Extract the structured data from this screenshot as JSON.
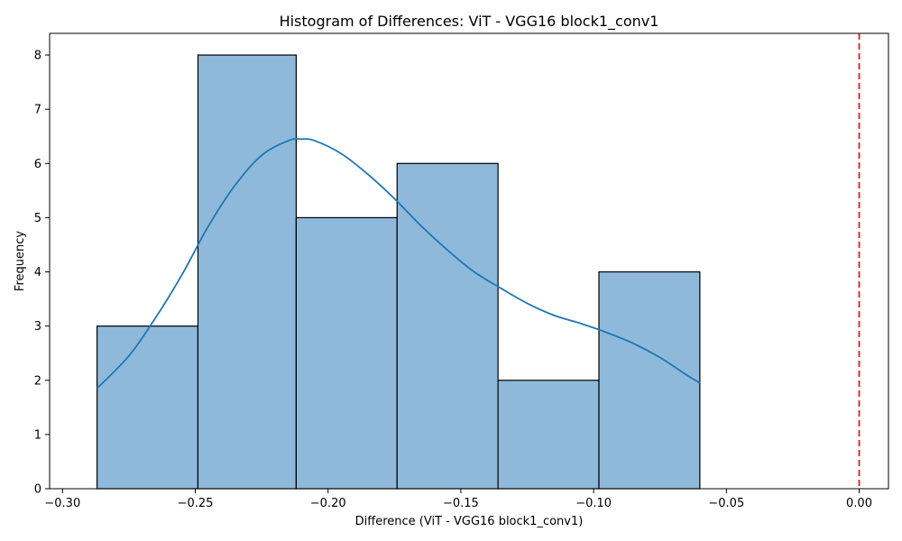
{
  "chart_data": {
    "type": "bar",
    "subtype": "histogram",
    "title": "Histogram of Differences: ViT - VGG16 block1_conv1",
    "xlabel": "Difference (ViT - VGG16 block1_conv1)",
    "ylabel": "Frequency",
    "xlim": [
      -0.3,
      0.0
    ],
    "ylim": [
      0,
      8.4
    ],
    "xticks": [
      -0.3,
      -0.25,
      -0.2,
      -0.15,
      -0.1,
      -0.05,
      0.0
    ],
    "xtick_labels": [
      "−0.30",
      "−0.25",
      "−0.20",
      "−0.15",
      "−0.10",
      "−0.05",
      "0.00"
    ],
    "yticks": [
      0,
      1,
      2,
      3,
      4,
      5,
      6,
      7,
      8
    ],
    "ytick_labels": [
      "0",
      "1",
      "2",
      "3",
      "4",
      "5",
      "6",
      "7",
      "8"
    ],
    "bins": [
      {
        "x0": -0.287,
        "x1": -0.249,
        "count": 3
      },
      {
        "x0": -0.249,
        "x1": -0.212,
        "count": 8
      },
      {
        "x0": -0.212,
        "x1": -0.174,
        "count": 5
      },
      {
        "x0": -0.174,
        "x1": -0.136,
        "count": 6
      },
      {
        "x0": -0.136,
        "x1": -0.098,
        "count": 2
      },
      {
        "x0": -0.098,
        "x1": -0.06,
        "count": 4
      }
    ],
    "kde": {
      "x": [
        -0.287,
        -0.275,
        -0.265,
        -0.255,
        -0.245,
        -0.235,
        -0.225,
        -0.215,
        -0.21,
        -0.205,
        -0.195,
        -0.185,
        -0.175,
        -0.165,
        -0.155,
        -0.145,
        -0.135,
        -0.125,
        -0.115,
        -0.105,
        -0.095,
        -0.085,
        -0.075,
        -0.065,
        -0.06
      ],
      "y": [
        1.85,
        2.45,
        3.15,
        3.95,
        4.85,
        5.6,
        6.15,
        6.42,
        6.45,
        6.42,
        6.18,
        5.8,
        5.35,
        4.85,
        4.4,
        4.0,
        3.7,
        3.42,
        3.2,
        3.05,
        2.88,
        2.68,
        2.42,
        2.1,
        1.95
      ]
    },
    "reference_line": {
      "x": 0.0,
      "color": "#e41a1c",
      "style": "dashed"
    },
    "colors": {
      "bar_fill": "#8fb9da",
      "bar_edge": "#000000",
      "kde_line": "#1f77b4"
    },
    "grid": false,
    "legend": "none"
  }
}
